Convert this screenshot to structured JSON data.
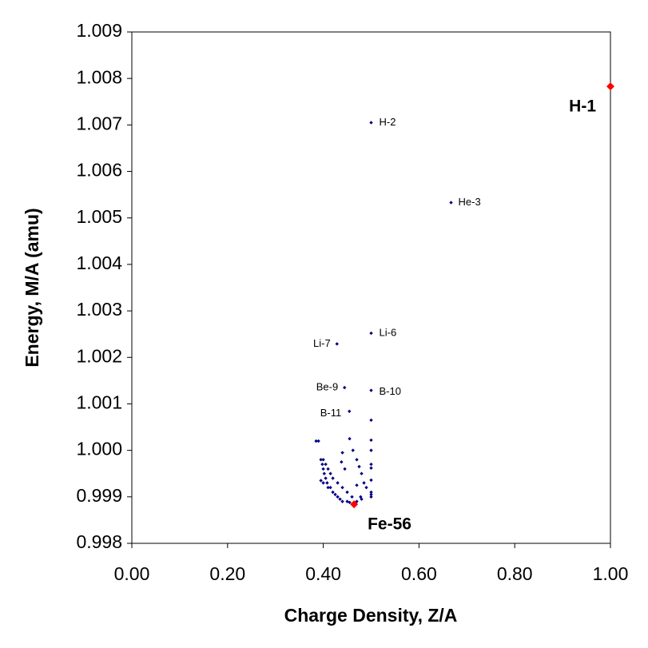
{
  "chart_data": {
    "type": "scatter",
    "x_label": "Charge Density, Z/A",
    "y_label": "Energy, M/A (amu)",
    "xlim": [
      0,
      1
    ],
    "ylim": [
      0.998,
      1.009
    ],
    "xticks": [
      {
        "value": 0,
        "label": "0.00"
      },
      {
        "value": 0.2,
        "label": "0.20"
      },
      {
        "value": 0.4,
        "label": "0.40"
      },
      {
        "value": 0.6,
        "label": "0.60"
      },
      {
        "value": 0.8,
        "label": "0.80"
      },
      {
        "value": 1,
        "label": "1.00"
      }
    ],
    "yticks": [
      0.998,
      0.999,
      {
        "value": 1,
        "label": "1.000"
      },
      1.001,
      1.002,
      1.003,
      1.004,
      1.005,
      1.006,
      1.007,
      1.008,
      1.009
    ],
    "series": [
      {
        "color": "#000080",
        "x": [
          0.5,
          0.667,
          0.5,
          0.4286,
          0.4444,
          0.5,
          0.4545,
          0.5,
          0.5,
          0.5,
          0.5,
          0.5,
          0.5,
          0.5,
          0.5,
          0.5,
          0.455,
          0.462,
          0.47,
          0.475,
          0.48,
          0.485,
          0.49,
          0.47,
          0.478,
          0.44,
          0.438,
          0.445,
          0.385,
          0.39,
          0.395,
          0.398,
          0.4,
          0.402,
          0.405,
          0.408,
          0.41,
          0.415,
          0.42,
          0.425,
          0.43,
          0.435,
          0.44,
          0.45,
          0.455,
          0.47,
          0.48,
          0.4,
          0.405,
          0.41,
          0.415,
          0.42,
          0.43,
          0.44,
          0.45,
          0.46,
          0.395,
          0.4
        ],
        "values": [
          1.00705,
          1.00533,
          1.00252,
          1.00229,
          1.00135,
          1.00129,
          1.00084,
          1.00065,
          1.00022,
          1.0,
          0.9997,
          0.99962,
          0.99936,
          0.9991,
          0.99905,
          0.999,
          1.00025,
          1.0,
          0.9998,
          0.99965,
          0.9995,
          0.9993,
          0.9992,
          0.99925,
          0.999,
          0.99995,
          0.99975,
          0.9996,
          1.0002,
          1.0002,
          0.9998,
          0.9997,
          0.9996,
          0.9995,
          0.9994,
          0.9993,
          0.9992,
          0.9992,
          0.9991,
          0.99905,
          0.999,
          0.99895,
          0.9989,
          0.9989,
          0.99888,
          0.9989,
          0.99895,
          0.9998,
          0.9997,
          0.9996,
          0.9995,
          0.9994,
          0.9993,
          0.9992,
          0.9991,
          0.999,
          0.99935,
          0.9993
        ],
        "labels": [
          "H-2",
          "He-3",
          "Li-6",
          "Li-7",
          "Be-9",
          "B-10",
          "B-11"
        ]
      },
      {
        "color": "#ff0000",
        "x": [
          1,
          0.4643
        ],
        "values": [
          1.00783,
          0.99884
        ],
        "labels": [
          "H-1",
          "Fe-56"
        ]
      }
    ]
  }
}
